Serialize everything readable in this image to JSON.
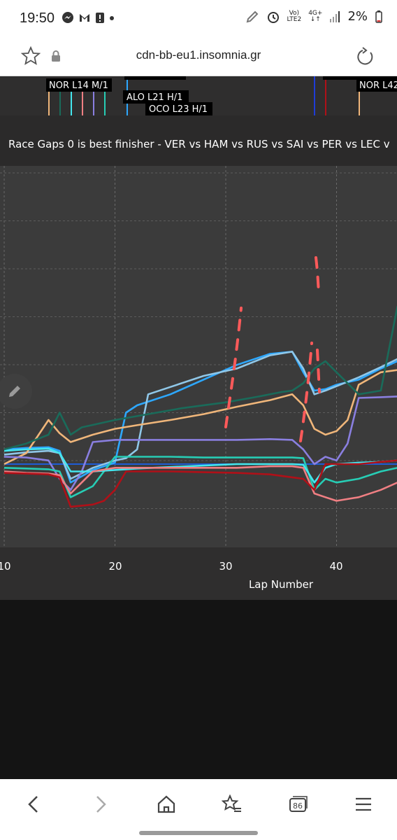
{
  "status_bar": {
    "time": "19:50",
    "battery": "2%",
    "network_top": "Vo)",
    "network_mid": "4G+",
    "network_bottom": "LTE2"
  },
  "browser": {
    "url": "cdn-bb-eu1.insomnia.gr",
    "tab_count": "86"
  },
  "chart_data": {
    "type": "line",
    "title": "Race Gaps 0 is best finisher - VER vs HAM vs RUS vs SAI vs PER vs LEC v",
    "xlabel": "Lap Number",
    "x_ticks": [
      10,
      20,
      30,
      40
    ],
    "xlim": [
      10,
      45.5
    ],
    "pit_labels": [
      "NOR L14 M/1",
      "ALO L21 H/1",
      "OCO L23 H/1",
      "NOR L42"
    ],
    "grid": true,
    "series": [
      {
        "color": "#1f5cd6",
        "x": [
          10,
          45.5
        ],
        "y": [
          0,
          0
        ]
      },
      {
        "color": "#2da8ff",
        "x": [
          10,
          12,
          14,
          15,
          16,
          18,
          20,
          21,
          22,
          25,
          28,
          31,
          34,
          36,
          37,
          38,
          39,
          40,
          42,
          44,
          45.5
        ],
        "y": [
          20,
          22,
          23,
          18,
          -25,
          -8,
          2,
          70,
          80,
          95,
          115,
          135,
          150,
          153,
          125,
          100,
          102,
          108,
          115,
          130,
          140
        ]
      },
      {
        "color": "#8fc7e8",
        "x": [
          10,
          12,
          14,
          15,
          16,
          18,
          20,
          21,
          22,
          23,
          25,
          28,
          31,
          34,
          36,
          37,
          38,
          39,
          40,
          42,
          44,
          45.5
        ],
        "y": [
          13,
          16,
          18,
          15,
          -20,
          -5,
          5,
          8,
          20,
          95,
          105,
          120,
          130,
          148,
          153,
          130,
          95,
          100,
          106,
          118,
          132,
          143
        ]
      },
      {
        "color": "#f0b67a",
        "x": [
          10,
          12,
          14,
          15,
          16,
          18,
          20,
          22,
          25,
          28,
          31,
          34,
          36,
          37,
          38,
          39,
          40,
          41,
          42,
          44,
          45.5
        ],
        "y": [
          0,
          15,
          60,
          42,
          30,
          40,
          48,
          53,
          60,
          68,
          78,
          87,
          95,
          80,
          48,
          40,
          45,
          60,
          108,
          125,
          128
        ]
      },
      {
        "color": "#8a7fe0",
        "x": [
          10,
          12,
          14,
          15,
          16,
          17,
          18,
          20,
          22,
          25,
          28,
          31,
          34,
          36,
          37,
          38,
          39,
          40,
          41,
          42,
          44,
          45.5
        ],
        "y": [
          10,
          9,
          5,
          -20,
          -35,
          -10,
          30,
          33,
          33,
          33,
          33,
          33,
          34,
          33,
          20,
          0,
          10,
          5,
          28,
          90,
          91,
          92
        ]
      },
      {
        "color": "#27cdb5",
        "x": [
          10,
          12,
          14,
          15,
          16,
          18,
          20,
          22,
          25,
          28,
          31,
          34,
          36,
          37,
          38,
          39,
          40,
          42,
          44,
          45.5
        ],
        "y": [
          -5,
          -6,
          -7,
          -10,
          -45,
          -30,
          10,
          10,
          10,
          9,
          9,
          9,
          9,
          8,
          -35,
          -20,
          -25,
          -20,
          -10,
          -5
        ]
      },
      {
        "color": "#44e6ee",
        "x": [
          10,
          12,
          14,
          15,
          16,
          18,
          20,
          22,
          25,
          28,
          31,
          34,
          36,
          37,
          38,
          39,
          40,
          42,
          44,
          45.5
        ],
        "y": [
          18,
          20,
          21,
          15,
          -10,
          -10,
          -8,
          -6,
          -4,
          -2,
          0,
          0,
          0,
          -1,
          -25,
          -5,
          0,
          2,
          3,
          5
        ]
      },
      {
        "color": "#f07f83",
        "x": [
          10,
          12,
          14,
          15,
          16,
          18,
          20,
          22,
          25,
          28,
          31,
          34,
          36,
          37,
          38,
          39,
          40,
          42,
          44,
          45.5
        ],
        "y": [
          -10,
          -12,
          -13,
          -15,
          -40,
          -10,
          -5,
          -5,
          -5,
          -5,
          -5,
          -3,
          -3,
          -5,
          -40,
          -45,
          -50,
          -45,
          -35,
          -25
        ]
      },
      {
        "color": "#b01018",
        "x": [
          10,
          12,
          14,
          15,
          16,
          18,
          19,
          20,
          21,
          22,
          25,
          28,
          31,
          34,
          36,
          37,
          38,
          39,
          40,
          42,
          44,
          45.5
        ],
        "y": [
          -12,
          -13,
          -14,
          -18,
          -58,
          -55,
          -50,
          -35,
          -10,
          -10,
          -10,
          -11,
          -12,
          -14,
          -18,
          -20,
          -35,
          0,
          0,
          0,
          3,
          5
        ]
      },
      {
        "color": "#1a6b5a",
        "x": [
          10,
          12,
          14,
          15,
          16,
          17,
          20,
          23,
          26,
          30,
          33,
          35,
          36,
          37,
          38,
          39,
          40,
          42,
          44,
          45.5
        ],
        "y": [
          20,
          28,
          40,
          70,
          40,
          50,
          60,
          68,
          76,
          84,
          92,
          98,
          100,
          110,
          130,
          140,
          125,
          95,
          100,
          215
        ]
      }
    ]
  }
}
